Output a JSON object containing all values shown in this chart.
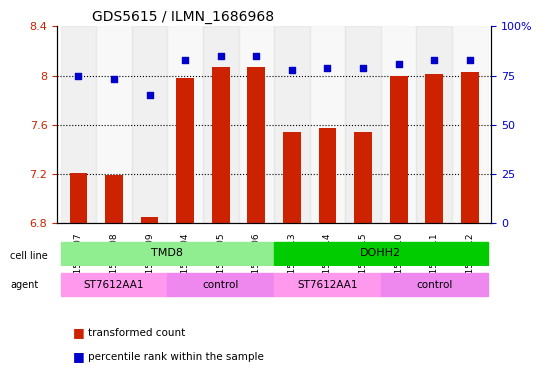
{
  "title": "GDS5615 / ILMN_1686968",
  "samples": [
    "GSM1527307",
    "GSM1527308",
    "GSM1527309",
    "GSM1527304",
    "GSM1527305",
    "GSM1527306",
    "GSM1527313",
    "GSM1527314",
    "GSM1527315",
    "GSM1527310",
    "GSM1527311",
    "GSM1527312"
  ],
  "transformed_count": [
    7.21,
    7.19,
    6.85,
    7.98,
    8.07,
    8.07,
    7.54,
    7.57,
    7.54,
    8.0,
    8.01,
    8.03
  ],
  "percentile_rank": [
    75,
    73,
    65,
    83,
    85,
    85,
    78,
    79,
    79,
    81,
    83,
    83
  ],
  "ylim_left": [
    6.8,
    8.4
  ],
  "ylim_right": [
    0,
    100
  ],
  "yticks_left": [
    6.8,
    7.2,
    7.6,
    8.0,
    8.4
  ],
  "yticks_right": [
    0,
    25,
    50,
    75,
    100
  ],
  "ytick_labels_left": [
    "6.8",
    "7.2",
    "7.6",
    "8",
    "8.4"
  ],
  "ytick_labels_right": [
    "0",
    "25",
    "50",
    "75",
    "100%"
  ],
  "cell_line_groups": [
    {
      "label": "TMD8",
      "start": 0,
      "end": 5,
      "color": "#90EE90"
    },
    {
      "label": "DOHH2",
      "start": 6,
      "end": 11,
      "color": "#00CC00"
    }
  ],
  "agent_groups": [
    {
      "label": "ST7612AA1",
      "start": 0,
      "end": 2,
      "color": "#FF99FF"
    },
    {
      "label": "control",
      "start": 3,
      "end": 5,
      "color": "#FF99FF"
    },
    {
      "label": "ST7612AA1",
      "start": 6,
      "end": 8,
      "color": "#FF99FF"
    },
    {
      "label": "control",
      "start": 9,
      "end": 11,
      "color": "#FF99FF"
    }
  ],
  "bar_color": "#CC2200",
  "dot_color": "#0000CC",
  "bar_width": 0.5,
  "tick_color_left": "#CC2200",
  "tick_color_right": "#0000CC",
  "background_color": "#FFFFFF",
  "plot_bg": "#FFFFFF",
  "legend_items": [
    {
      "label": "transformed count",
      "color": "#CC2200",
      "marker": "s"
    },
    {
      "label": "percentile rank within the sample",
      "color": "#0000CC",
      "marker": "s"
    }
  ]
}
